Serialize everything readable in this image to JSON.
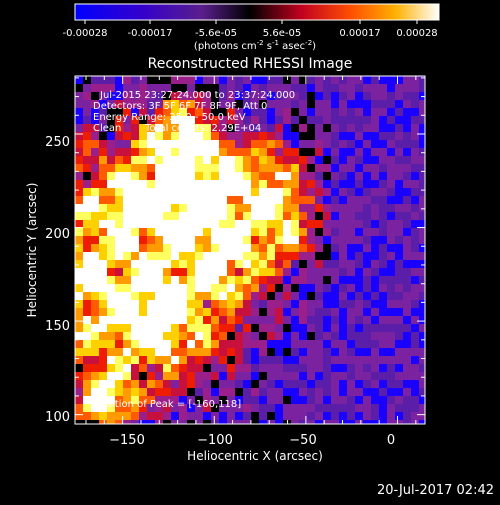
{
  "colors": {
    "background": "#000000",
    "foreground": "#ffffff",
    "colormap": [
      "#000000",
      "#1a00ff",
      "#5a1ea8",
      "#7a22a0",
      "#9b1f8a",
      "#c8103c",
      "#ee1c00",
      "#ff5a00",
      "#ff9a00",
      "#ffd000",
      "#ffff60",
      "#ffffff"
    ]
  },
  "colorbar": {
    "ticks": [
      "-0.00028",
      "-0.00017",
      "-5.6e-05",
      "5.6e-05",
      "0.00017",
      "0.00028"
    ],
    "unit_base": "(photons cm",
    "unit_sup1": "-2",
    "unit_mid": " s",
    "unit_sup2": "-1",
    "unit_end": " asec",
    "unit_sup3": "-2",
    "unit_close": ")"
  },
  "chart_data": {
    "type": "heatmap",
    "title": "Reconstructed RHESSI Image",
    "xlabel": "Heliocentric X (arcsec)",
    "ylabel": "Heliocentric Y (arcsec)",
    "xlim": [
      -176,
      15
    ],
    "ylim": [
      95,
      281
    ],
    "xticks": [
      -150,
      -100,
      -50,
      0
    ],
    "yticks": [
      100,
      150,
      200,
      250
    ],
    "xtick_labels": [
      "−150",
      "−100",
      "−50",
      "0"
    ],
    "ytick_labels": [
      "100",
      "150",
      "200",
      "250"
    ],
    "annotations": [
      "Jul-2015 23:27:24.000 to 23:37:24.000",
      "Detectors: 3F 5F 6F 7F 8F 9F, Att 0",
      "Energy Range: 25.0 - 50.0 keV",
      "Clean",
      "Total counts: 2.29E+04"
    ],
    "peak_label": "Position of Peak = [-160,118]",
    "peak_position": [
      -160,
      118
    ]
  },
  "footer": {
    "timestamp": "20-Jul-2017 02:42"
  }
}
